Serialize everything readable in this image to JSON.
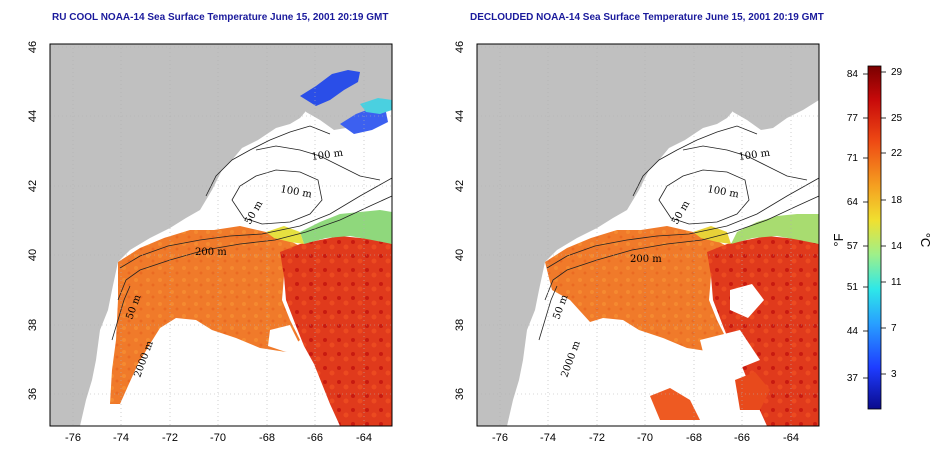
{
  "titles": {
    "left": "RU COOL NOAA-14 Sea Surface Temperature June 15, 2001 20:19 GMT",
    "right": "DECLOUDED NOAA-14 Sea Surface Temperature June 15, 2001 20:19 GMT"
  },
  "axes": {
    "longitude_ticks": [
      "-76",
      "-74",
      "-72",
      "-70",
      "-68",
      "-66",
      "-64"
    ],
    "latitude_ticks": [
      "46",
      "44",
      "42",
      "40",
      "38",
      "36"
    ]
  },
  "contour_labels": {
    "left": [
      "100 m",
      "100 m",
      "50 m",
      "200 m",
      "50 m",
      "2000 m"
    ],
    "right": [
      "100 m",
      "100 m",
      "50 m",
      "200 m",
      "50 m",
      "2000 m"
    ]
  },
  "colorbar": {
    "unit_f": "°F",
    "unit_c": "°C",
    "fahrenheit_ticks": [
      "84",
      "77",
      "71",
      "64",
      "57",
      "51",
      "44",
      "37"
    ],
    "celsius_ticks": [
      "29",
      "25",
      "22",
      "18",
      "14",
      "11",
      "7",
      "3"
    ],
    "colors": [
      "#0a0a8c",
      "#1e3cff",
      "#28a0ff",
      "#2ee8e8",
      "#9ef08a",
      "#f0e030",
      "#f5a020",
      "#ee4a14",
      "#c80a0a",
      "#7a0000"
    ]
  },
  "palette": {
    "land": "#c0c0c0",
    "water": "#ffffff",
    "sst_orange": "#f07828",
    "sst_red": "#dc2818",
    "sst_green": "#9ad878",
    "sst_cold_blue": "#2a4ee8",
    "title_blue": "#1a1a9c"
  }
}
